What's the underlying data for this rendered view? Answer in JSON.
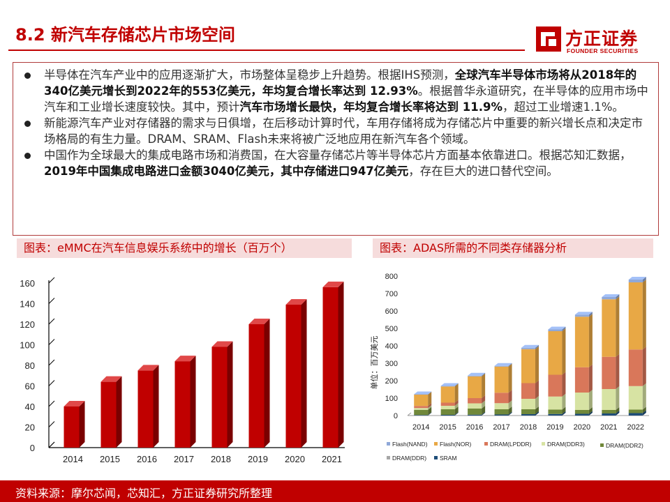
{
  "header": {
    "title": "8.2 新汽车存储芯片市场空间",
    "brand_cn": "方正证券",
    "brand_en": "FOUNDER SECURITIES",
    "brand_color": "#c00000"
  },
  "bullets": [
    {
      "segments": [
        {
          "text": "半导体在汽车产业中的应用逐渐扩大，市场整体呈稳步上升趋势。根据IHS预测，",
          "bold": false
        },
        {
          "text": "全球汽车半导体市场将从2018年的340亿美元增长到2022年的553亿美元，年均复合增长率达到 12.93%",
          "bold": true
        },
        {
          "text": "。根据普华永道研究，在半导体的应用市场中汽车和工业增长速度较快。其中，预计",
          "bold": false
        },
        {
          "text": "汽车市场增长最快，年均复合增长率将达到 11.9%",
          "bold": true
        },
        {
          "text": "，超过工业增速1.1%。",
          "bold": false
        }
      ]
    },
    {
      "segments": [
        {
          "text": "新能源汽车产业对存储器的需求与日俱增，在后移动计算时代，车用存储将成为存储芯片中重要的新兴增长点和决定市场格局的有生力量。DRAM、SRAM、Flash未来将被广泛地应用在新汽车各个领域。",
          "bold": false
        }
      ]
    },
    {
      "segments": [
        {
          "text": "中国作为全球最大的集成电路市场和消费国，在大容量存储芯片等半导体芯片方面基本依靠进口。根据芯知汇数据，",
          "bold": false
        },
        {
          "text": "2019年中国集成电路进口金额3040亿美元，其中存储进口947亿美元",
          "bold": true
        },
        {
          "text": "，存在巨大的进口替代空间。",
          "bold": false
        }
      ]
    }
  ],
  "panels": {
    "left_title": "图表：eMMC在汽车信息娱乐系统中的增长（百万个）",
    "right_title": "图表：ADAS所需的不同类存储器分析"
  },
  "source": "资料来源：摩尔芯闻，芯知汇，方正证券研究所整理",
  "chart_data": [
    {
      "type": "bar",
      "title": "图表：eMMC在汽车信息娱乐系统中的增长（百万个）",
      "categories": [
        "2014",
        "2015",
        "2016",
        "2017",
        "2018",
        "2019",
        "2020",
        "2021"
      ],
      "values": [
        40,
        64,
        75,
        84,
        98,
        120,
        139,
        156
      ],
      "ylim": [
        0,
        160
      ],
      "yticks": [
        0,
        20,
        40,
        60,
        80,
        100,
        120,
        140,
        160
      ],
      "color": "#c00000",
      "grid": false,
      "style": "3d"
    },
    {
      "type": "bar",
      "stacked": true,
      "title": "图表：ADAS所需的不同类存储器分析",
      "ylabel": "单位：百万美元",
      "categories": [
        "2014",
        "2015",
        "2016",
        "2017",
        "2018",
        "2019",
        "2020",
        "2021",
        "2022"
      ],
      "ylim": [
        0,
        800
      ],
      "yticks": [
        0,
        100,
        200,
        300,
        400,
        500,
        600,
        700,
        800
      ],
      "legend_position": "bottom",
      "series": [
        {
          "name": "SRAM",
          "color": "#1f4e79",
          "values": [
            3,
            4,
            5,
            6,
            8,
            9,
            10,
            12,
            14
          ]
        },
        {
          "name": "DRAM(DDR2)",
          "color": "#70883a",
          "values": [
            30,
            32,
            35,
            30,
            28,
            25,
            22,
            20,
            20
          ]
        },
        {
          "name": "DRAM(DDR3)",
          "color": "#d7e3a3",
          "values": [
            10,
            20,
            30,
            35,
            60,
            75,
            100,
            120,
            135
          ]
        },
        {
          "name": "DRAM(LPDDR)",
          "color": "#d9775a",
          "values": [
            12,
            18,
            30,
            60,
            90,
            125,
            145,
            185,
            210
          ]
        },
        {
          "name": "Flash(NOR)",
          "color": "#e8a845",
          "values": [
            65,
            93,
            125,
            150,
            195,
            250,
            290,
            330,
            385
          ]
        },
        {
          "name": "Flash(NAND)",
          "color": "#8fa8d8",
          "values": [
            2,
            3,
            4,
            4,
            8,
            10,
            12,
            13,
            16
          ]
        },
        {
          "name": "DRAM(DDR)",
          "color": "#a6a6a6",
          "values": [
            0,
            0,
            0,
            0,
            0,
            0,
            0,
            0,
            0
          ]
        }
      ],
      "legend_order": [
        "Flash(NAND)",
        "Flash(NOR)",
        "DRAM(LPDDR)",
        "DRAM(DDR3)",
        "DRAM(DDR2)",
        "DRAM(DDR)",
        "SRAM"
      ]
    }
  ]
}
